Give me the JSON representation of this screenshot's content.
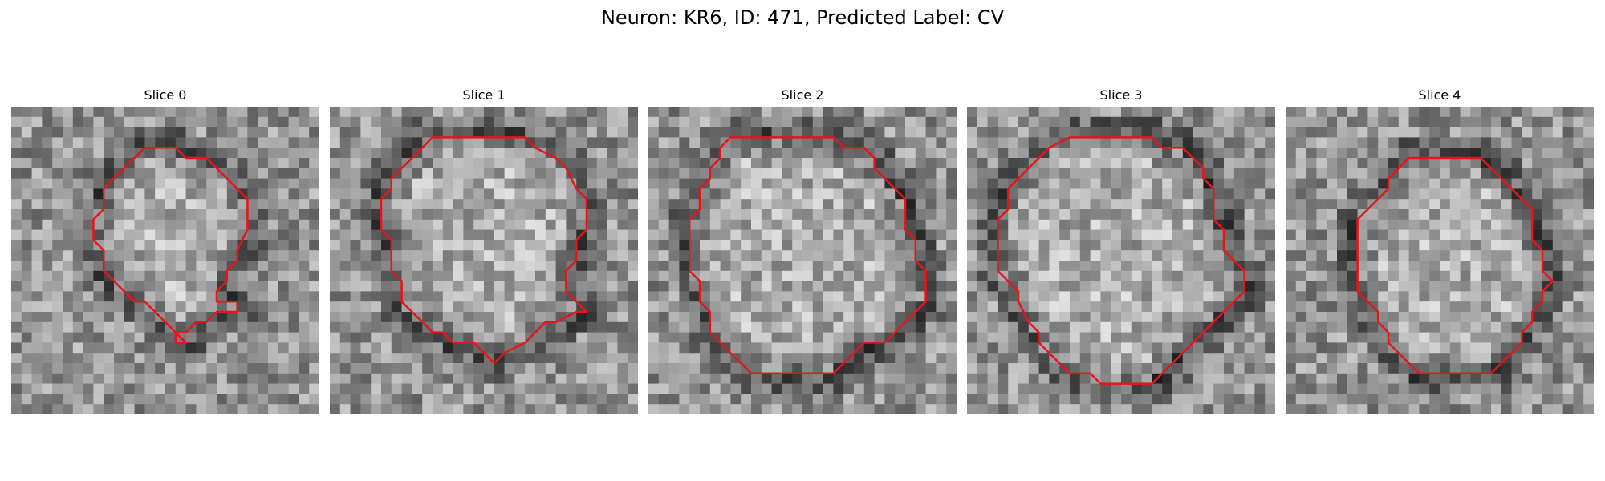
{
  "figure": {
    "title": "Neuron: KR6, ID: 471, Predicted Label: CV",
    "contour_color": "#e8141a",
    "grid_size": 30
  },
  "panels": [
    {
      "title": "Slice 0",
      "seed": 11
    },
    {
      "title": "Slice 1",
      "seed": 29
    },
    {
      "title": "Slice 2",
      "seed": 47
    },
    {
      "title": "Slice 3",
      "seed": 83
    },
    {
      "title": "Slice 4",
      "seed": 101
    }
  ]
}
